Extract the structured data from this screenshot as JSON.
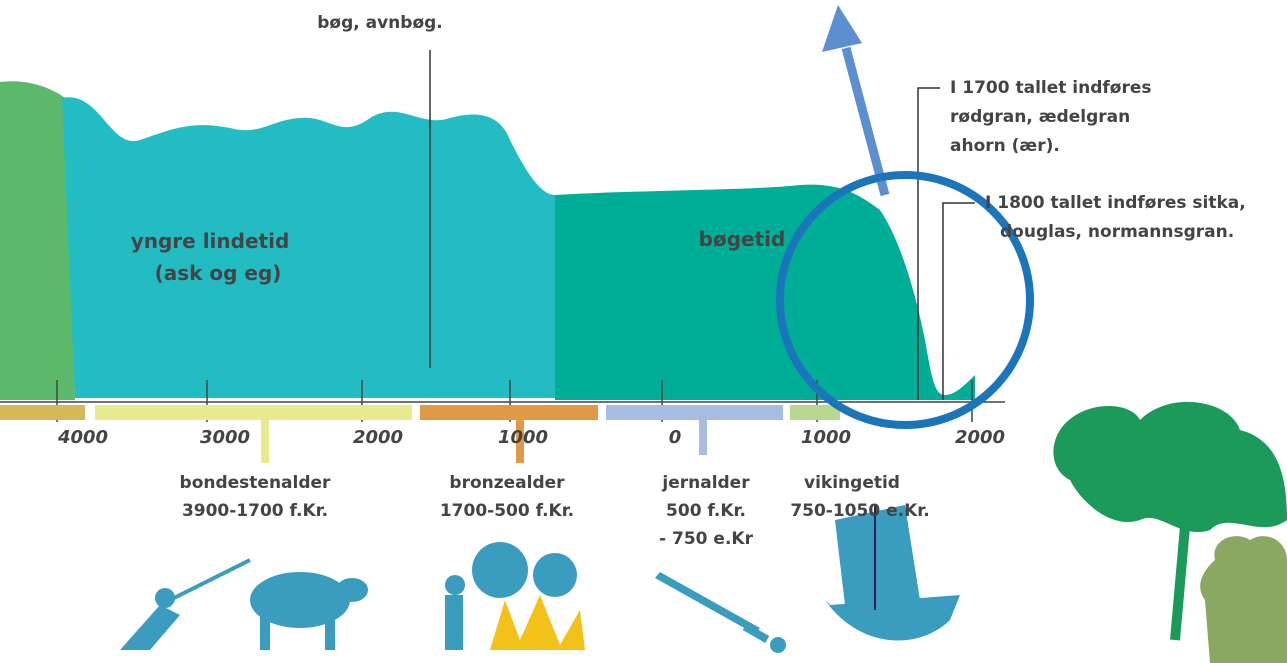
{
  "annotations": {
    "top": "bøg, avnbøg.",
    "note_1700": [
      "I 1700 tallet indføres",
      "rødgran, ædelgran",
      "ahorn (ær)."
    ],
    "note_1800": [
      "I 1800 tallet indføres sitka,",
      "douglas, normannsgran."
    ]
  },
  "zones": [
    {
      "lines": [
        "yngre lindetid",
        "(ask og eg)"
      ]
    },
    {
      "lines": [
        "bøgetid"
      ]
    }
  ],
  "axis": {
    "labels": [
      "4000",
      "3000",
      "2000",
      "1000",
      "0",
      "1000",
      "2000"
    ]
  },
  "periods": [
    {
      "lines": [
        "bondestenalder",
        "3900-1700 f.Kr."
      ]
    },
    {
      "lines": [
        "bronzealder",
        "1700-500 f.Kr."
      ]
    },
    {
      "lines": [
        "jernalder",
        "500 f.Kr.",
        "- 750 e.Kr"
      ]
    },
    {
      "lines": [
        "vikingetid",
        "750-1050 e.Kr."
      ]
    }
  ]
}
